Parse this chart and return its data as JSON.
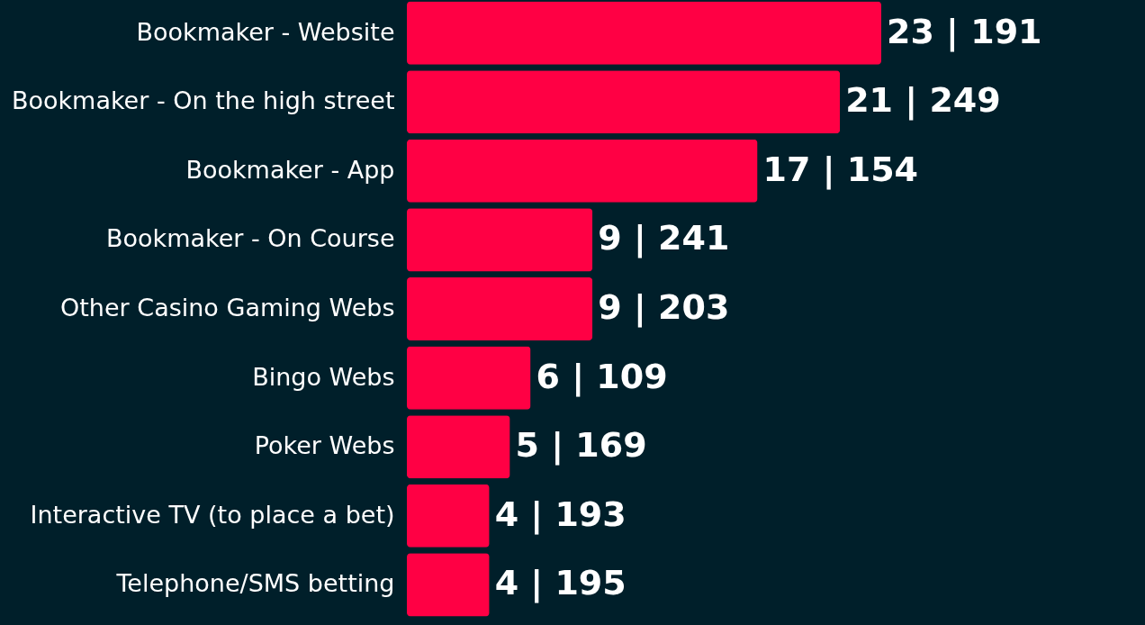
{
  "chart_data": {
    "type": "bar",
    "orientation": "horizontal",
    "categories": [
      "Bookmaker - Website",
      "Bookmaker - On the high street",
      "Bookmaker - App",
      "Bookmaker - On Course",
      "Other Casino Gaming Webs",
      "Bingo Webs",
      "Poker Webs",
      "Interactive TV (to place a bet)",
      "Telephone/SMS betting"
    ],
    "values": [
      23,
      21,
      17,
      9,
      9,
      6,
      5,
      4,
      4
    ],
    "value_labels": [
      "23 | 191",
      "21 | 249",
      "17 | 154",
      "9 | 241",
      "9 | 203",
      "6 | 109",
      "5 | 169",
      "4 | 193",
      "4 | 195"
    ],
    "color": "#ff0044",
    "grid": false
  }
}
